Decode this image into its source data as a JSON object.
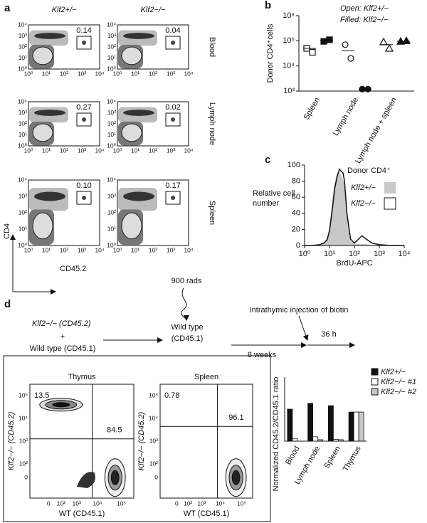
{
  "figure_a": {
    "label": "a",
    "columns": [
      "Klf2+/−",
      "Klf2−/−"
    ],
    "rows": [
      "Blood",
      "Lymph node",
      "Spleen"
    ],
    "gates": [
      [
        "0.14",
        "0.04"
      ],
      [
        "0.27",
        "0.02"
      ],
      [
        "0.10",
        "0.17"
      ]
    ],
    "ticks": [
      "10⁰",
      "10¹",
      "10²",
      "10³",
      "10⁴"
    ],
    "y_label": "CD4",
    "x_label": "CD45.2"
  },
  "chart_data": [
    {
      "label": "b",
      "type": "scatter",
      "y_label": "Donor CD4⁺cells",
      "categories": [
        "Spleen",
        "Lymph node",
        "Lymph node + spleen"
      ],
      "markers": [
        "square",
        "circle",
        "triangle"
      ],
      "series": [
        {
          "name": "Open: Klf2+/−",
          "color": "#ffffff",
          "values": [
            [
              50000,
              35000
            ],
            [
              70000,
              20000
            ],
            [
              90000,
              50000
            ]
          ],
          "means": [
            50000,
            40000,
            70000
          ]
        },
        {
          "name": "Filled: Klf2−/−",
          "color": "#111111",
          "values": [
            [
              95000,
              110000
            ],
            [
              1200,
              1200
            ],
            [
              95000,
              100000
            ]
          ],
          "means": [
            100000,
            1200,
            95000
          ]
        }
      ],
      "log_y": true,
      "ylim": [
        1000,
        1000000
      ],
      "yticks": [
        {
          "value": 1000,
          "label": "10³"
        },
        {
          "value": 10000,
          "label": "10⁴"
        },
        {
          "value": 100000,
          "label": "10⁵"
        },
        {
          "value": 1000000,
          "label": "10⁶"
        }
      ]
    },
    {
      "label": "c",
      "type": "line",
      "y_label": [
        "Relative cell",
        "number"
      ],
      "x_label": "BrdU-APC",
      "legend_title": "Donor CD4⁺",
      "log_x": true,
      "x": [
        1,
        2,
        4,
        6,
        8,
        10,
        13,
        16,
        20,
        25,
        30,
        35,
        40,
        50,
        70,
        100,
        200,
        300,
        500,
        1000,
        3000,
        10000
      ],
      "series": [
        {
          "name": "Klf2+/−",
          "color": "#c8c8c8",
          "filled": true,
          "values": [
            0,
            0,
            1,
            3,
            8,
            20,
            50,
            75,
            88,
            90,
            85,
            80,
            70,
            30,
            5,
            2,
            1,
            1,
            0,
            0,
            0,
            0
          ]
        },
        {
          "name": "Klf2−/−",
          "color": "#111111",
          "filled": false,
          "values": [
            0,
            0,
            1,
            3,
            7,
            18,
            45,
            70,
            85,
            95,
            92,
            90,
            80,
            40,
            8,
            3,
            12,
            8,
            3,
            1,
            0,
            0
          ]
        }
      ],
      "xlim": [
        1,
        10000
      ],
      "xticks": [
        {
          "value": 1,
          "label": "10⁰"
        },
        {
          "value": 10,
          "label": "10¹"
        },
        {
          "value": 100,
          "label": "10²"
        },
        {
          "value": 1000,
          "label": "10³"
        },
        {
          "value": 10000,
          "label": "10⁴"
        }
      ],
      "ylim": [
        0,
        100
      ],
      "yticks": [
        0,
        20,
        40,
        60,
        80,
        100
      ]
    },
    {
      "type": "bar",
      "y_label": "Normalized CD45.2/CD45.1 ratio",
      "categories": [
        "Blood",
        "Lymph node",
        "Spleen",
        "Thymus"
      ],
      "series": [
        {
          "name": "Klf2+/−",
          "color": "#111111",
          "values": [
            1.1,
            1.3,
            1.22,
            1.0
          ]
        },
        {
          "name": "Klf2−/− #1",
          "color": "#ffffff",
          "values": [
            0.08,
            0.15,
            0.06,
            1.0
          ]
        },
        {
          "name": "Klf2−/− #2",
          "color": "#c8c8c8",
          "values": [
            null,
            0.05,
            0.05,
            1.0
          ]
        }
      ],
      "ylim": [
        0,
        2.2
      ]
    }
  ],
  "figure_d": {
    "label": "d",
    "donor": "Klf2−/− (CD45.2)",
    "plus": "+",
    "wt": "Wild type (CD45.1)",
    "irradiation": "900 rads",
    "recipient": [
      "Wild type",
      "(CD45.1)"
    ],
    "injection": "Intrathymic injection of biotin",
    "interval1": "8 weeks",
    "interval2": "36 h",
    "plots": [
      {
        "title": "Thymus",
        "quadrants": [
          "13.5",
          "84.5"
        ]
      },
      {
        "title": "Spleen",
        "quadrants": [
          "0.78",
          "96.1"
        ]
      }
    ],
    "y_label": "Klf2−/− (CD45.2)",
    "x_label": "WT (CD45.1)",
    "y_ticks": [
      "10⁵",
      "10⁴",
      "10³",
      "10²",
      "0"
    ],
    "x_ticks": [
      "0",
      "10²",
      "10³",
      "10⁴",
      "10⁵"
    ]
  }
}
